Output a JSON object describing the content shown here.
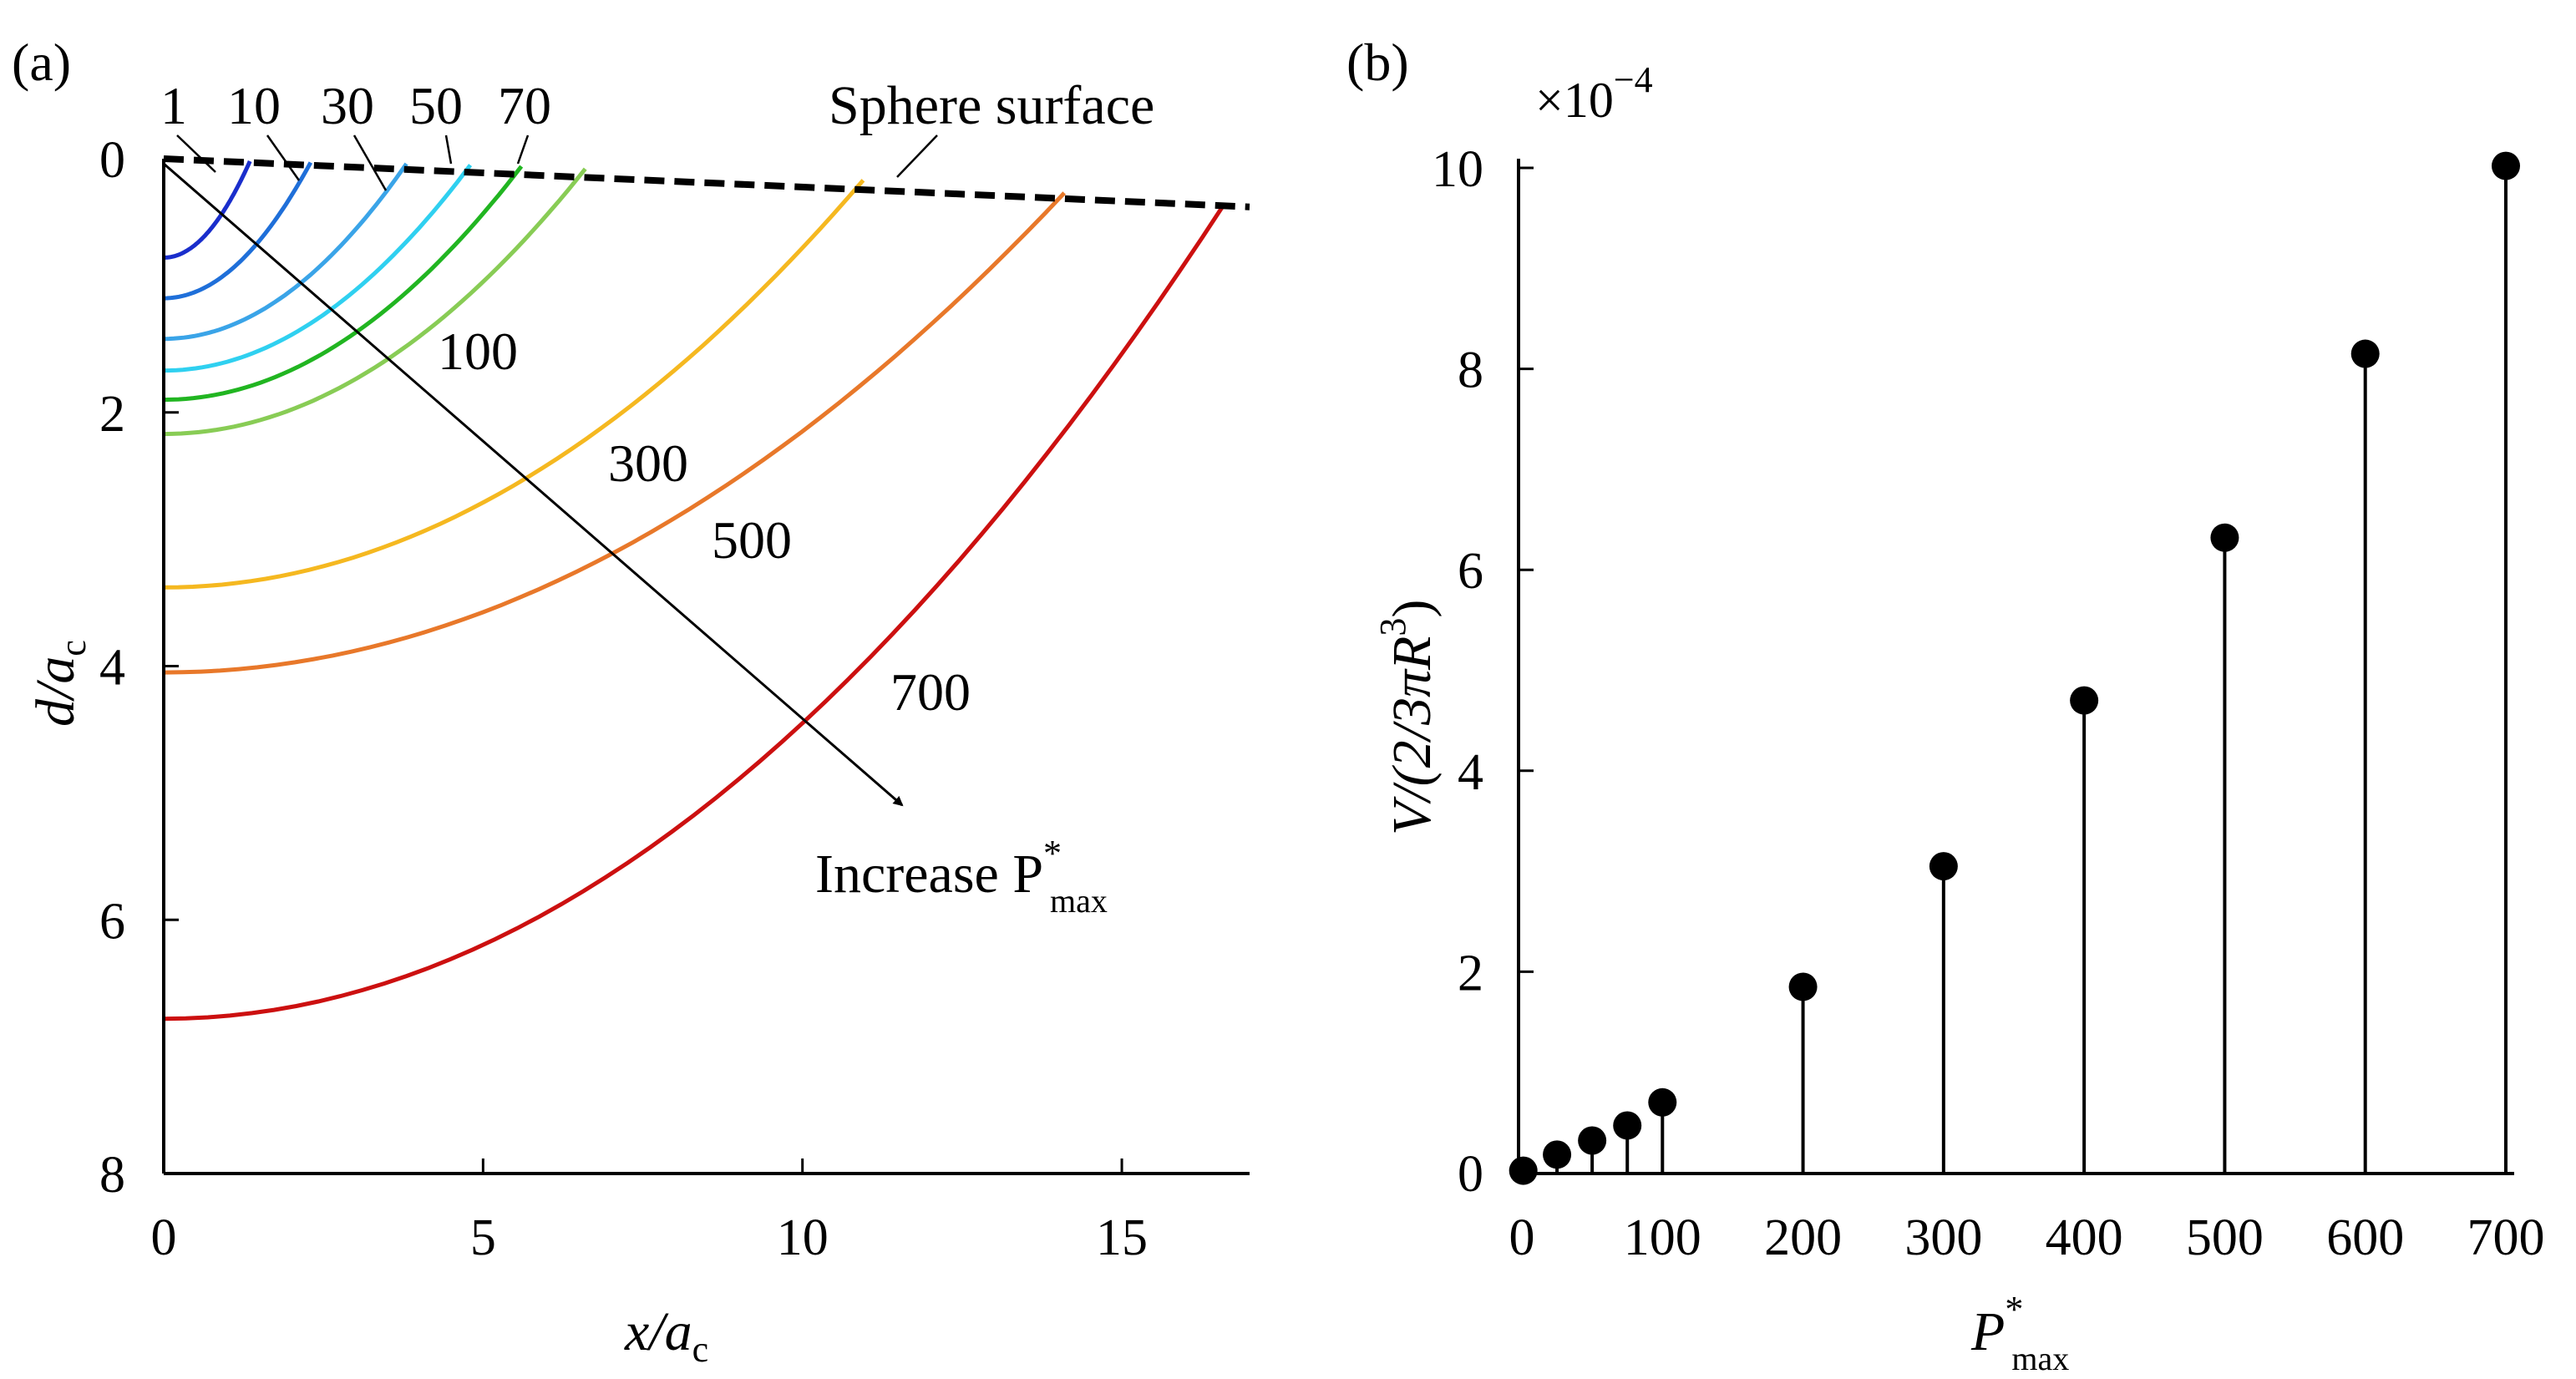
{
  "chart_data": [
    {
      "panel_label": "(a)",
      "type": "line",
      "xlabel": "x/a",
      "xlabel_sub": "c",
      "ylabel": "d/a",
      "ylabel_sub": "c",
      "xlim": [
        0,
        17
      ],
      "ylim": [
        8,
        0
      ],
      "xticks": [
        0,
        5,
        10,
        15
      ],
      "yticks": [
        0,
        2,
        4,
        6,
        8
      ],
      "sphere_surface": {
        "label": "Sphere surface",
        "x": [
          0,
          17
        ],
        "y": [
          0,
          0.38
        ],
        "color": "#000000"
      },
      "series": [
        {
          "name": "1",
          "depth": 0.78,
          "x_end": 1.35,
          "y_end": 0.02,
          "color": "#1a2ecc"
        },
        {
          "name": "10",
          "depth": 1.1,
          "x_end": 2.3,
          "y_end": 0.03,
          "color": "#1f6fd9"
        },
        {
          "name": "30",
          "depth": 1.42,
          "x_end": 3.8,
          "y_end": 0.04,
          "color": "#3aa4e8"
        },
        {
          "name": "50",
          "depth": 1.67,
          "x_end": 4.8,
          "y_end": 0.05,
          "color": "#2fd0f0"
        },
        {
          "name": "70",
          "depth": 1.9,
          "x_end": 5.6,
          "y_end": 0.06,
          "color": "#21b521"
        },
        {
          "name": "100",
          "depth": 2.17,
          "x_end": 6.6,
          "y_end": 0.08,
          "color": "#88cc55"
        },
        {
          "name": "300",
          "depth": 3.38,
          "x_end": 10.95,
          "y_end": 0.17,
          "color": "#f5b820"
        },
        {
          "name": "500",
          "depth": 4.05,
          "x_end": 14.1,
          "y_end": 0.27,
          "color": "#e8782a"
        },
        {
          "name": "700",
          "depth": 6.78,
          "x_end": 16.6,
          "y_end": 0.36,
          "color": "#cc1010"
        }
      ],
      "top_labels": [
        "1",
        "10",
        "30",
        "50",
        "70"
      ],
      "arrow_annotation": {
        "text": "Increase P",
        "sup": "*",
        "sub": "max"
      }
    },
    {
      "panel_label": "(b)",
      "type": "stem",
      "multiplier": "×10",
      "multiplier_exp": "−4",
      "ylabel": "V/(2/3πR",
      "ylabel_sup": "3",
      "ylabel_end": ")",
      "xlabel": "P",
      "xlabel_sup": "*",
      "xlabel_sub": "max",
      "xlim": [
        0,
        700
      ],
      "ylim": [
        0,
        10
      ],
      "xticks": [
        0,
        100,
        200,
        300,
        400,
        500,
        600,
        700
      ],
      "yticks": [
        0,
        2,
        4,
        6,
        8,
        10
      ],
      "x": [
        1,
        25,
        50,
        75,
        100,
        200,
        300,
        400,
        500,
        600,
        700
      ],
      "values": [
        0.02,
        0.18,
        0.32,
        0.47,
        0.7,
        1.85,
        3.05,
        4.7,
        6.32,
        8.15,
        10.02
      ]
    }
  ]
}
